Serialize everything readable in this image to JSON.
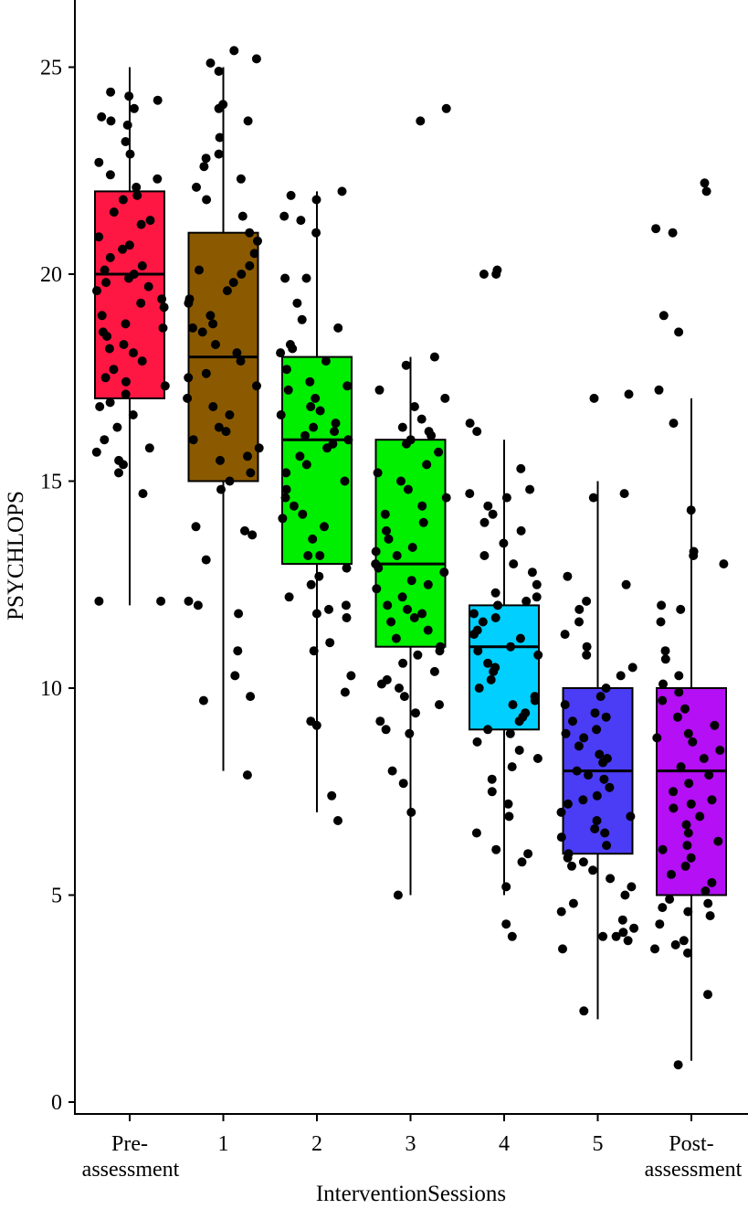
{
  "chart_data": {
    "type": "boxplot",
    "xlabel": "InterventionSessions",
    "ylabel": "PSYCHLOPS",
    "ylim": [
      0,
      26.5
    ],
    "yticks": [
      0,
      5,
      10,
      15,
      20,
      25
    ],
    "grid": false,
    "legend": "none",
    "categories": [
      {
        "label_lines": [
          "Pre-",
          "assessment"
        ]
      },
      {
        "label_lines": [
          "1"
        ]
      },
      {
        "label_lines": [
          "2"
        ]
      },
      {
        "label_lines": [
          "3"
        ]
      },
      {
        "label_lines": [
          "4"
        ]
      },
      {
        "label_lines": [
          "5"
        ]
      },
      {
        "label_lines": [
          "Post-",
          "assessment"
        ]
      }
    ],
    "boxes": [
      {
        "color": "#FF1744",
        "min": 12,
        "q1": 17,
        "median": 20,
        "q3": 22,
        "max": 25,
        "points": [
          24.3,
          24.0,
          23.8,
          23.7,
          23.2,
          22.9,
          22.7,
          22.3,
          22.1,
          21.8,
          21.5,
          21.3,
          21.2,
          20.9,
          20.7,
          20.4,
          20.2,
          20.1,
          20.0,
          19.9,
          19.8,
          19.6,
          19.4,
          19.2,
          19.0,
          18.8,
          18.7,
          18.5,
          18.3,
          18.1,
          17.9,
          17.7,
          17.5,
          17.3,
          17.1,
          16.9,
          16.6,
          16.3,
          16.0,
          15.8,
          15.5,
          15.2,
          12.1,
          12.1,
          24.4,
          24.2,
          23.6,
          22.4,
          21.9,
          20.6,
          19.7,
          19.3,
          18.6,
          18.2,
          17.4,
          16.8,
          15.7,
          15.4,
          14.7
        ]
      },
      {
        "color": "#8B5A00",
        "min": 8,
        "q1": 15,
        "median": 18,
        "q3": 21,
        "max": 25,
        "points": [
          25.4,
          25.2,
          25.1,
          24.9,
          24.1,
          24.0,
          23.7,
          23.3,
          22.9,
          22.8,
          22.6,
          22.3,
          22.1,
          21.8,
          21.4,
          21.0,
          20.8,
          20.5,
          20.2,
          20.0,
          19.8,
          19.6,
          19.3,
          19.0,
          18.8,
          18.6,
          18.3,
          18.1,
          17.9,
          17.6,
          17.3,
          17.0,
          16.8,
          16.6,
          16.3,
          16.0,
          15.8,
          15.5,
          15.2,
          15.0,
          14.8,
          13.9,
          13.8,
          13.7,
          13.1,
          12.1,
          12.0,
          11.8,
          10.9,
          10.3,
          9.8,
          9.7,
          7.9,
          20.1,
          19.4,
          18.7,
          17.5,
          16.2,
          15.6
        ]
      },
      {
        "color": "#00EE00",
        "min": 7,
        "q1": 13,
        "median": 16,
        "q3": 18,
        "max": 22,
        "points": [
          22.0,
          21.9,
          21.8,
          21.4,
          21.3,
          21.0,
          19.9,
          19.9,
          19.3,
          18.9,
          18.7,
          18.3,
          18.2,
          18.1,
          17.9,
          17.7,
          17.4,
          17.2,
          17.0,
          16.8,
          16.6,
          16.4,
          16.3,
          16.2,
          16.1,
          16.0,
          15.9,
          15.8,
          15.6,
          15.4,
          15.2,
          15.0,
          14.8,
          14.6,
          14.4,
          14.2,
          14.1,
          13.9,
          13.6,
          13.2,
          13.2,
          12.9,
          12.7,
          12.5,
          12.2,
          12.0,
          11.9,
          11.8,
          11.7,
          11.1,
          10.9,
          10.3,
          9.9,
          9.2,
          9.1,
          7.4,
          6.8,
          17.3,
          16.7
        ]
      },
      {
        "color": "#00F000",
        "min": 5,
        "q1": 11,
        "median": 13,
        "q3": 16,
        "max": 18,
        "points": [
          24.0,
          23.7,
          18.0,
          17.8,
          17.2,
          17.0,
          16.8,
          16.5,
          16.3,
          16.2,
          16.1,
          16.0,
          15.9,
          15.7,
          15.4,
          15.2,
          15.0,
          14.8,
          14.6,
          14.4,
          14.2,
          14.0,
          13.8,
          13.6,
          13.4,
          13.2,
          13.0,
          12.8,
          12.6,
          12.4,
          12.2,
          12.0,
          11.8,
          11.6,
          11.4,
          11.2,
          11.0,
          10.8,
          10.6,
          10.4,
          10.2,
          10.0,
          9.8,
          9.6,
          9.4,
          9.2,
          9.0,
          8.9,
          8.0,
          7.7,
          7.0,
          5.0,
          13.3,
          12.9,
          12.5,
          11.9,
          11.7,
          10.9,
          10.1
        ]
      },
      {
        "color": "#00CFFF",
        "min": 5,
        "q1": 9,
        "median": 11,
        "q3": 12,
        "max": 16,
        "points": [
          20.1,
          20.0,
          20.0,
          16.4,
          16.2,
          15.3,
          14.8,
          14.7,
          14.6,
          14.4,
          14.2,
          14.0,
          13.8,
          13.5,
          13.2,
          13.0,
          12.8,
          12.5,
          12.3,
          12.2,
          12.1,
          12.0,
          11.8,
          11.6,
          11.4,
          11.2,
          11.0,
          10.8,
          10.6,
          10.4,
          10.2,
          10.0,
          9.8,
          9.6,
          9.4,
          9.2,
          9.0,
          8.9,
          8.7,
          8.5,
          8.3,
          8.1,
          7.8,
          7.5,
          7.2,
          6.9,
          6.5,
          6.1,
          6.0,
          5.8,
          5.2,
          4.3,
          4.0,
          11.7,
          11.3,
          10.9,
          10.5,
          9.7,
          9.3
        ]
      },
      {
        "color": "#4B3CF5",
        "min": 2,
        "q1": 6,
        "median": 8,
        "q3": 10,
        "max": 15,
        "points": [
          17.1,
          17.0,
          14.7,
          14.6,
          12.7,
          12.5,
          12.1,
          11.9,
          11.6,
          11.3,
          11.0,
          10.8,
          10.5,
          10.3,
          10.0,
          9.8,
          9.6,
          9.4,
          9.2,
          9.0,
          8.8,
          8.6,
          8.4,
          8.2,
          8.0,
          7.8,
          7.6,
          7.4,
          7.2,
          7.0,
          6.8,
          6.6,
          6.4,
          6.2,
          6.0,
          5.9,
          5.8,
          5.6,
          5.4,
          5.2,
          5.0,
          4.8,
          4.6,
          4.4,
          4.2,
          4.1,
          4.0,
          4.0,
          3.9,
          3.7,
          2.2,
          9.3,
          8.9,
          8.3,
          7.9,
          7.3,
          6.9,
          6.5,
          5.7
        ]
      },
      {
        "color": "#B40FF5",
        "min": 1,
        "q1": 5,
        "median": 8,
        "q3": 10,
        "max": 17,
        "points": [
          22.2,
          22.0,
          21.1,
          21.0,
          19.0,
          18.6,
          17.2,
          16.4,
          14.3,
          13.3,
          13.2,
          13.0,
          12.0,
          11.9,
          11.6,
          10.9,
          10.7,
          10.3,
          10.1,
          9.9,
          9.7,
          9.5,
          9.3,
          9.1,
          8.9,
          8.7,
          8.5,
          8.3,
          8.1,
          7.9,
          7.7,
          7.5,
          7.3,
          7.1,
          6.9,
          6.7,
          6.5,
          6.3,
          6.1,
          5.9,
          5.7,
          5.5,
          5.3,
          5.1,
          4.9,
          4.8,
          4.7,
          4.6,
          4.5,
          4.3,
          3.9,
          3.8,
          3.7,
          3.6,
          2.6,
          0.9,
          8.8,
          7.2,
          6.2
        ]
      }
    ]
  }
}
